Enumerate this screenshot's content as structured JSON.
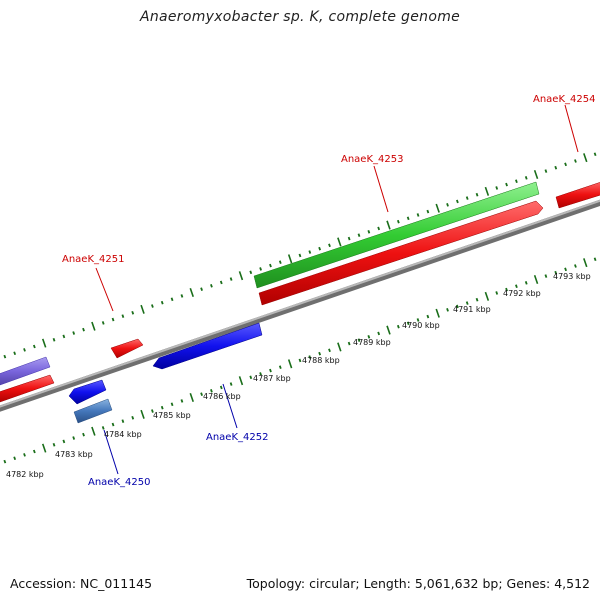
{
  "title": "Anaeromyxobacter sp. K, complete genome",
  "accession": "Accession: NC_011145",
  "summary": "Topology: circular; Length: 5,061,632 bp; Genes: 4,512",
  "colors": {
    "forward_label": "#cc0000",
    "reverse_label": "#0000aa",
    "tick": "#1a6e1a",
    "backbone": "#8a8a8a"
  },
  "scale": {
    "unit": "kbp",
    "labels": [
      "4782 kbp",
      "4783 kbp",
      "4784 kbp",
      "4785 kbp",
      "4786 kbp",
      "4787 kbp",
      "4788 kbp",
      "4789 kbp",
      "4790 kbp",
      "4791 kbp",
      "4792 kbp",
      "4793 kbp"
    ]
  },
  "genes": [
    {
      "name": "AnaeK_4251",
      "strand": "forward",
      "color": "#e8121a"
    },
    {
      "name": "AnaeK_4253",
      "strand": "forward",
      "color": "#e8121a"
    },
    {
      "name": "AnaeK_4254",
      "strand": "forward",
      "color": "#e8121a"
    },
    {
      "name": "AnaeK_4252",
      "strand": "reverse",
      "color": "#1010e0"
    },
    {
      "name": "AnaeK_4250",
      "strand": "reverse",
      "color": "#4477bb"
    }
  ]
}
